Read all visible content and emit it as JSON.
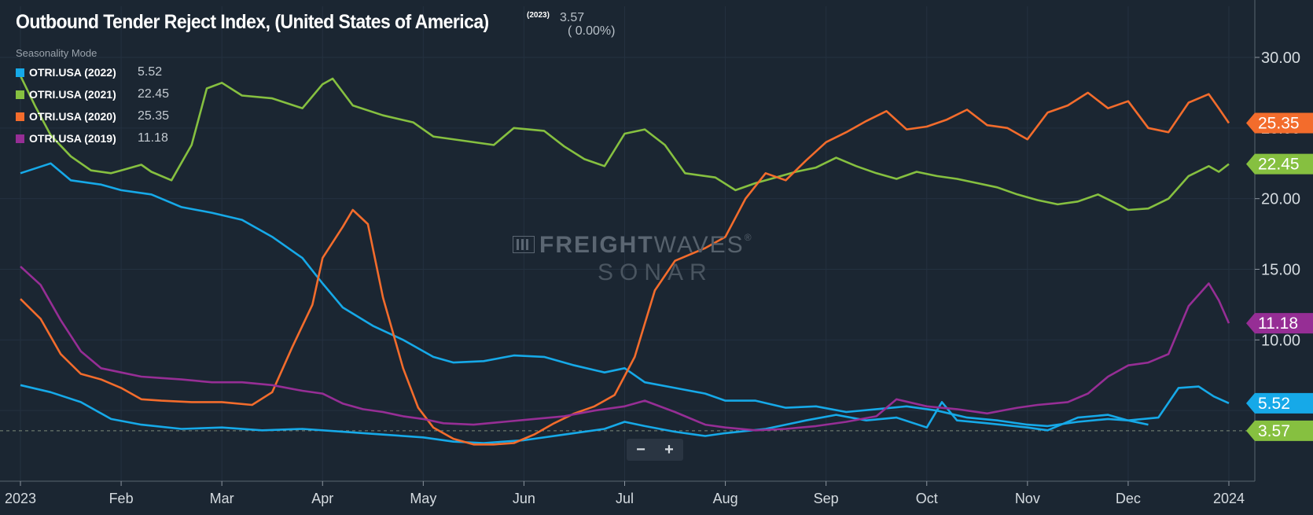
{
  "header": {
    "title": "Outbound Tender Reject Index, (United States of America)",
    "title_year": "(2023)",
    "current_value": "3.57",
    "current_change": "( 0.00%)",
    "mode_label": "Seasonality Mode"
  },
  "legend": [
    {
      "name": "OTRI.USA (2022)",
      "value": "5.52",
      "color": "#16a9e8"
    },
    {
      "name": "OTRI.USA (2021)",
      "value": "22.45",
      "color": "#86c040"
    },
    {
      "name": "OTRI.USA (2020)",
      "value": "25.35",
      "color": "#f36c2c"
    },
    {
      "name": "OTRI.USA (2019)",
      "value": "11.18",
      "color": "#962e95"
    }
  ],
  "watermark": {
    "brand_a": "FREIGHT",
    "brand_b": "WAVES",
    "trademark": "®",
    "product": "SONAR"
  },
  "zoom": {
    "minus": "−",
    "plus": "+"
  },
  "chart_data": {
    "type": "line",
    "x_labels": [
      "2023",
      "Feb",
      "Mar",
      "Apr",
      "May",
      "Jun",
      "Jul",
      "Aug",
      "Sep",
      "Oct",
      "Nov",
      "Dec",
      "2024"
    ],
    "y_ticks": [
      "30.00",
      "25.00",
      "20.00",
      "15.00",
      "10.00"
    ],
    "ylim": [
      0,
      34
    ],
    "x_range": [
      0,
      12
    ],
    "grid": true,
    "current_line": {
      "value": 3.57,
      "label": "3.57",
      "color": "#86c040"
    },
    "series": [
      {
        "name": "OTRI.USA (2022)",
        "color": "#16a9e8",
        "last_label": "5.52",
        "points": [
          [
            0,
            21.8
          ],
          [
            0.3,
            22.5
          ],
          [
            0.5,
            21.3
          ],
          [
            0.8,
            21.0
          ],
          [
            1.0,
            20.6
          ],
          [
            1.3,
            20.3
          ],
          [
            1.6,
            19.4
          ],
          [
            1.9,
            19.0
          ],
          [
            2.2,
            18.5
          ],
          [
            2.5,
            17.3
          ],
          [
            2.8,
            15.8
          ],
          [
            3.0,
            14.0
          ],
          [
            3.2,
            12.3
          ],
          [
            3.5,
            11.0
          ],
          [
            3.8,
            10.0
          ],
          [
            4.1,
            8.8
          ],
          [
            4.3,
            8.4
          ],
          [
            4.6,
            8.5
          ],
          [
            4.9,
            8.9
          ],
          [
            5.2,
            8.8
          ],
          [
            5.5,
            8.2
          ],
          [
            5.8,
            7.7
          ],
          [
            6.0,
            8.0
          ],
          [
            6.2,
            7.0
          ],
          [
            6.5,
            6.6
          ],
          [
            6.8,
            6.2
          ],
          [
            7.0,
            5.7
          ],
          [
            7.3,
            5.7
          ],
          [
            7.6,
            5.2
          ],
          [
            7.9,
            5.3
          ],
          [
            8.2,
            4.9
          ],
          [
            8.5,
            5.1
          ],
          [
            8.8,
            5.3
          ],
          [
            9.1,
            5.0
          ],
          [
            9.4,
            4.5
          ],
          [
            9.7,
            4.3
          ],
          [
            10.0,
            4.0
          ],
          [
            10.2,
            3.9
          ],
          [
            10.5,
            4.2
          ],
          [
            10.8,
            4.4
          ],
          [
            11.0,
            4.3
          ],
          [
            11.3,
            4.5
          ],
          [
            11.5,
            6.6
          ],
          [
            11.7,
            6.7
          ],
          [
            11.85,
            6.0
          ],
          [
            12.0,
            5.52
          ]
        ]
      },
      {
        "name": "OTRI.USA (2022) lower",
        "color": "#16a9e8",
        "last_label": "",
        "points": [
          [
            0,
            6.8
          ],
          [
            0.3,
            6.3
          ],
          [
            0.6,
            5.6
          ],
          [
            0.9,
            4.4
          ],
          [
            1.2,
            4.0
          ],
          [
            1.6,
            3.7
          ],
          [
            2.0,
            3.8
          ],
          [
            2.4,
            3.6
          ],
          [
            2.8,
            3.7
          ],
          [
            3.2,
            3.5
          ],
          [
            3.6,
            3.3
          ],
          [
            4.0,
            3.1
          ],
          [
            4.3,
            2.8
          ],
          [
            4.6,
            2.7
          ],
          [
            5.0,
            2.9
          ],
          [
            5.4,
            3.3
          ],
          [
            5.8,
            3.7
          ],
          [
            6.0,
            4.2
          ],
          [
            6.2,
            3.9
          ],
          [
            6.5,
            3.5
          ],
          [
            6.8,
            3.2
          ],
          [
            7.0,
            3.4
          ],
          [
            7.4,
            3.7
          ],
          [
            7.8,
            4.3
          ],
          [
            8.1,
            4.7
          ],
          [
            8.4,
            4.3
          ],
          [
            8.7,
            4.5
          ],
          [
            9.0,
            3.8
          ],
          [
            9.15,
            5.6
          ],
          [
            9.3,
            4.3
          ],
          [
            9.6,
            4.1
          ],
          [
            10.0,
            3.8
          ],
          [
            10.2,
            3.6
          ],
          [
            10.5,
            4.5
          ],
          [
            10.8,
            4.7
          ],
          [
            11.0,
            4.3
          ],
          [
            11.2,
            4.0
          ]
        ]
      },
      {
        "name": "OTRI.USA (2021)",
        "color": "#86c040",
        "last_label": "22.45",
        "points": [
          [
            0,
            28.7
          ],
          [
            0.15,
            26.5
          ],
          [
            0.3,
            24.5
          ],
          [
            0.5,
            23.0
          ],
          [
            0.7,
            22.0
          ],
          [
            0.9,
            21.8
          ],
          [
            1.0,
            22.0
          ],
          [
            1.2,
            22.4
          ],
          [
            1.3,
            21.9
          ],
          [
            1.5,
            21.3
          ],
          [
            1.7,
            23.8
          ],
          [
            1.85,
            27.8
          ],
          [
            2.0,
            28.2
          ],
          [
            2.2,
            27.3
          ],
          [
            2.5,
            27.1
          ],
          [
            2.8,
            26.4
          ],
          [
            3.0,
            28.1
          ],
          [
            3.1,
            28.5
          ],
          [
            3.3,
            26.6
          ],
          [
            3.6,
            25.9
          ],
          [
            3.9,
            25.4
          ],
          [
            4.1,
            24.4
          ],
          [
            4.4,
            24.1
          ],
          [
            4.7,
            23.8
          ],
          [
            4.9,
            25.0
          ],
          [
            5.2,
            24.8
          ],
          [
            5.4,
            23.7
          ],
          [
            5.6,
            22.8
          ],
          [
            5.8,
            22.3
          ],
          [
            6.0,
            24.6
          ],
          [
            6.2,
            24.9
          ],
          [
            6.4,
            23.8
          ],
          [
            6.6,
            21.8
          ],
          [
            6.9,
            21.5
          ],
          [
            7.1,
            20.6
          ],
          [
            7.3,
            21.1
          ],
          [
            7.5,
            21.5
          ],
          [
            7.7,
            21.9
          ],
          [
            7.9,
            22.2
          ],
          [
            8.1,
            22.9
          ],
          [
            8.3,
            22.3
          ],
          [
            8.5,
            21.8
          ],
          [
            8.7,
            21.4
          ],
          [
            8.9,
            21.9
          ],
          [
            9.1,
            21.6
          ],
          [
            9.3,
            21.4
          ],
          [
            9.5,
            21.1
          ],
          [
            9.7,
            20.8
          ],
          [
            9.9,
            20.3
          ],
          [
            10.1,
            19.9
          ],
          [
            10.3,
            19.6
          ],
          [
            10.5,
            19.8
          ],
          [
            10.7,
            20.3
          ],
          [
            10.9,
            19.6
          ],
          [
            11.0,
            19.2
          ],
          [
            11.2,
            19.3
          ],
          [
            11.4,
            20.0
          ],
          [
            11.6,
            21.6
          ],
          [
            11.8,
            22.3
          ],
          [
            11.9,
            21.9
          ],
          [
            12.0,
            22.45
          ]
        ]
      },
      {
        "name": "OTRI.USA (2020)",
        "color": "#f36c2c",
        "last_label": "25.35",
        "points": [
          [
            0,
            12.9
          ],
          [
            0.2,
            11.5
          ],
          [
            0.4,
            9.0
          ],
          [
            0.6,
            7.6
          ],
          [
            0.8,
            7.2
          ],
          [
            1.0,
            6.6
          ],
          [
            1.2,
            5.8
          ],
          [
            1.4,
            5.7
          ],
          [
            1.7,
            5.6
          ],
          [
            2.0,
            5.6
          ],
          [
            2.3,
            5.4
          ],
          [
            2.5,
            6.3
          ],
          [
            2.7,
            9.5
          ],
          [
            2.9,
            12.5
          ],
          [
            3.0,
            15.8
          ],
          [
            3.2,
            18.0
          ],
          [
            3.3,
            19.2
          ],
          [
            3.45,
            18.2
          ],
          [
            3.6,
            13.0
          ],
          [
            3.8,
            8.0
          ],
          [
            3.95,
            5.2
          ],
          [
            4.1,
            3.8
          ],
          [
            4.3,
            3.0
          ],
          [
            4.5,
            2.6
          ],
          [
            4.7,
            2.6
          ],
          [
            4.9,
            2.7
          ],
          [
            5.1,
            3.3
          ],
          [
            5.3,
            4.1
          ],
          [
            5.5,
            4.8
          ],
          [
            5.7,
            5.3
          ],
          [
            5.9,
            6.1
          ],
          [
            6.1,
            8.8
          ],
          [
            6.3,
            13.5
          ],
          [
            6.5,
            15.6
          ],
          [
            6.6,
            15.9
          ],
          [
            6.8,
            16.5
          ],
          [
            7.0,
            17.3
          ],
          [
            7.2,
            20.0
          ],
          [
            7.4,
            21.8
          ],
          [
            7.6,
            21.3
          ],
          [
            7.8,
            22.7
          ],
          [
            8.0,
            24.0
          ],
          [
            8.2,
            24.7
          ],
          [
            8.4,
            25.5
          ],
          [
            8.6,
            26.2
          ],
          [
            8.8,
            24.9
          ],
          [
            9.0,
            25.1
          ],
          [
            9.2,
            25.6
          ],
          [
            9.4,
            26.3
          ],
          [
            9.6,
            25.2
          ],
          [
            9.8,
            25.0
          ],
          [
            10.0,
            24.2
          ],
          [
            10.2,
            26.1
          ],
          [
            10.4,
            26.6
          ],
          [
            10.6,
            27.5
          ],
          [
            10.8,
            26.4
          ],
          [
            11.0,
            26.9
          ],
          [
            11.2,
            25.0
          ],
          [
            11.4,
            24.7
          ],
          [
            11.6,
            26.8
          ],
          [
            11.8,
            27.4
          ],
          [
            11.9,
            26.4
          ],
          [
            12.0,
            25.35
          ]
        ]
      },
      {
        "name": "OTRI.USA (2019)",
        "color": "#962e95",
        "last_label": "11.18",
        "points": [
          [
            0,
            15.2
          ],
          [
            0.2,
            13.9
          ],
          [
            0.4,
            11.4
          ],
          [
            0.6,
            9.2
          ],
          [
            0.8,
            8.0
          ],
          [
            1.0,
            7.7
          ],
          [
            1.2,
            7.4
          ],
          [
            1.4,
            7.3
          ],
          [
            1.6,
            7.2
          ],
          [
            1.9,
            7.0
          ],
          [
            2.2,
            7.0
          ],
          [
            2.5,
            6.8
          ],
          [
            2.8,
            6.4
          ],
          [
            3.0,
            6.2
          ],
          [
            3.2,
            5.5
          ],
          [
            3.4,
            5.1
          ],
          [
            3.6,
            4.9
          ],
          [
            3.8,
            4.6
          ],
          [
            4.0,
            4.4
          ],
          [
            4.2,
            4.1
          ],
          [
            4.5,
            4.0
          ],
          [
            4.8,
            4.2
          ],
          [
            5.1,
            4.4
          ],
          [
            5.4,
            4.6
          ],
          [
            5.7,
            5.0
          ],
          [
            6.0,
            5.3
          ],
          [
            6.2,
            5.7
          ],
          [
            6.5,
            4.9
          ],
          [
            6.8,
            4.0
          ],
          [
            7.0,
            3.8
          ],
          [
            7.3,
            3.6
          ],
          [
            7.6,
            3.7
          ],
          [
            7.9,
            3.9
          ],
          [
            8.2,
            4.2
          ],
          [
            8.5,
            4.6
          ],
          [
            8.7,
            5.8
          ],
          [
            9.0,
            5.3
          ],
          [
            9.3,
            5.1
          ],
          [
            9.6,
            4.8
          ],
          [
            9.9,
            5.2
          ],
          [
            10.1,
            5.4
          ],
          [
            10.4,
            5.6
          ],
          [
            10.6,
            6.2
          ],
          [
            10.8,
            7.4
          ],
          [
            11.0,
            8.2
          ],
          [
            11.2,
            8.4
          ],
          [
            11.4,
            9.0
          ],
          [
            11.6,
            12.4
          ],
          [
            11.8,
            14.0
          ],
          [
            11.9,
            12.8
          ],
          [
            12.0,
            11.18
          ]
        ]
      }
    ]
  }
}
